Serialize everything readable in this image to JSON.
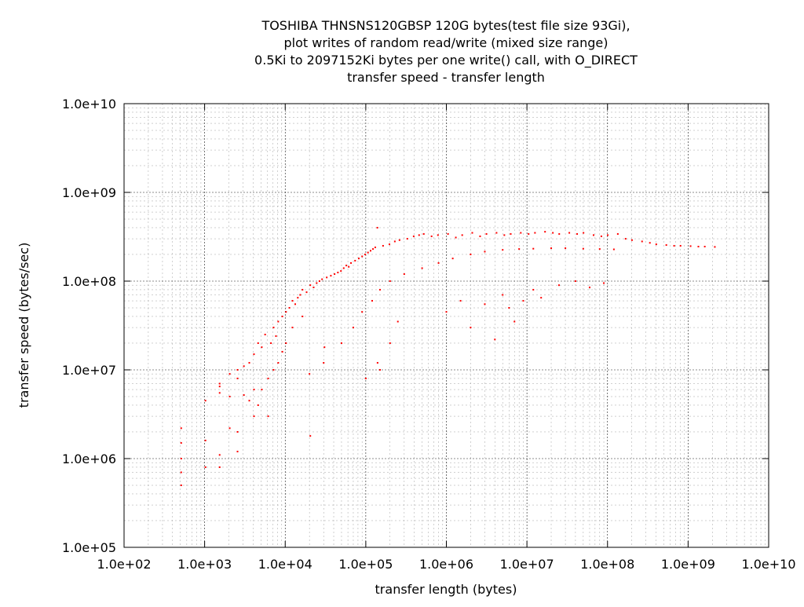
{
  "chart_data": {
    "type": "scatter",
    "title_lines": [
      "TOSHIBA THNSNS120GBSP 120G bytes(test file size 93Gi),",
      "plot writes of random read/write (mixed size range)",
      "0.5Ki to 2097152Ki bytes per one write() call, with O_DIRECT",
      "transfer speed - transfer length"
    ],
    "xlabel": "transfer length (bytes)",
    "ylabel": "transfer speed (bytes/sec)",
    "x_scale": "log",
    "y_scale": "log",
    "xlim": [
      100,
      10000000000
    ],
    "ylim": [
      100000,
      10000000000
    ],
    "grid": true,
    "x_tick_labels": [
      "1.0e+02",
      "1.0e+03",
      "1.0e+04",
      "1.0e+05",
      "1.0e+06",
      "1.0e+07",
      "1.0e+08",
      "1.0e+09",
      "1.0e+10"
    ],
    "y_tick_labels": [
      "1.0e+05",
      "1.0e+06",
      "1.0e+07",
      "1.0e+08",
      "1.0e+09",
      "1.0e+10"
    ],
    "x_ticks": [
      100,
      1000,
      10000,
      100000,
      1000000,
      10000000,
      100000000,
      1000000000,
      10000000000
    ],
    "y_ticks": [
      100000,
      1000000,
      10000000,
      100000000,
      1000000000,
      10000000000
    ],
    "series_color": "#ff0000",
    "series": [
      {
        "points": [
          [
            512,
            500000
          ],
          [
            512,
            700000
          ],
          [
            512,
            1000000
          ],
          [
            512,
            1500000
          ],
          [
            512,
            2200000
          ],
          [
            1024,
            1600000
          ],
          [
            1024,
            4500000
          ],
          [
            1024,
            800000
          ],
          [
            1536,
            800000
          ],
          [
            1536,
            1100000
          ],
          [
            1536,
            5500000
          ],
          [
            1536,
            6500000
          ],
          [
            1536,
            7000000
          ],
          [
            2048,
            2200000
          ],
          [
            2048,
            5000000
          ],
          [
            2048,
            9000000
          ],
          [
            2560,
            2000000
          ],
          [
            2560,
            1200000
          ],
          [
            2560,
            8000000
          ],
          [
            2560,
            10000000
          ],
          [
            3072,
            5200000
          ],
          [
            3072,
            11000000
          ],
          [
            3584,
            12000000
          ],
          [
            3584,
            4500000
          ],
          [
            4096,
            3000000
          ],
          [
            4096,
            6000000
          ],
          [
            4096,
            15000000
          ],
          [
            4608,
            4000000
          ],
          [
            4608,
            20000000
          ],
          [
            5120,
            6000000
          ],
          [
            5120,
            18000000
          ],
          [
            5632,
            25000000
          ],
          [
            6144,
            3000000
          ],
          [
            6144,
            8000000
          ],
          [
            6656,
            20000000
          ],
          [
            7168,
            10000000
          ],
          [
            7168,
            30000000
          ],
          [
            7680,
            24000000
          ],
          [
            8192,
            12000000
          ],
          [
            8192,
            35000000
          ],
          [
            9216,
            40000000
          ],
          [
            9216,
            16000000
          ],
          [
            10240,
            45000000
          ],
          [
            10240,
            20000000
          ],
          [
            11264,
            50000000
          ],
          [
            12288,
            30000000
          ],
          [
            12288,
            60000000
          ],
          [
            13312,
            55000000
          ],
          [
            14336,
            65000000
          ],
          [
            15360,
            70000000
          ],
          [
            16384,
            40000000
          ],
          [
            16384,
            80000000
          ],
          [
            18432,
            75000000
          ],
          [
            20480,
            90000000
          ],
          [
            20480,
            1800000
          ],
          [
            22528,
            85000000
          ],
          [
            24576,
            95000000
          ],
          [
            26624,
            100000000
          ],
          [
            28672,
            105000000
          ],
          [
            30720,
            18000000
          ],
          [
            32768,
            110000000
          ],
          [
            36864,
            115000000
          ],
          [
            40960,
            120000000
          ],
          [
            45056,
            125000000
          ],
          [
            49152,
            130000000
          ],
          [
            53248,
            140000000
          ],
          [
            57344,
            150000000
          ],
          [
            61440,
            145000000
          ],
          [
            65536,
            160000000
          ],
          [
            73728,
            170000000
          ],
          [
            81920,
            180000000
          ],
          [
            90112,
            190000000
          ],
          [
            98304,
            200000000
          ],
          [
            106496,
            210000000
          ],
          [
            114688,
            220000000
          ],
          [
            122880,
            230000000
          ],
          [
            131072,
            240000000
          ],
          [
            139264,
            400000000
          ],
          [
            163840,
            250000000
          ],
          [
            196608,
            260000000
          ],
          [
            229376,
            280000000
          ],
          [
            262144,
            290000000
          ],
          [
            327680,
            300000000
          ],
          [
            393216,
            320000000
          ],
          [
            458752,
            330000000
          ],
          [
            524288,
            340000000
          ],
          [
            655360,
            320000000
          ],
          [
            786432,
            330000000
          ],
          [
            1048576,
            340000000
          ],
          [
            1310720,
            310000000
          ],
          [
            1572864,
            330000000
          ],
          [
            2097152,
            350000000
          ],
          [
            2621440,
            320000000
          ],
          [
            3145728,
            340000000
          ],
          [
            4194304,
            350000000
          ],
          [
            5242880,
            330000000
          ],
          [
            6291456,
            340000000
          ],
          [
            8388608,
            350000000
          ],
          [
            10485760,
            340000000
          ],
          [
            12582912,
            350000000
          ],
          [
            16777216,
            360000000
          ],
          [
            20971520,
            350000000
          ],
          [
            25165824,
            340000000
          ],
          [
            33554432,
            350000000
          ],
          [
            41943040,
            340000000
          ],
          [
            50331648,
            350000000
          ],
          [
            67108864,
            330000000
          ],
          [
            83886080,
            320000000
          ],
          [
            100663296,
            330000000
          ],
          [
            134217728,
            340000000
          ],
          [
            167772160,
            300000000
          ],
          [
            201326592,
            290000000
          ],
          [
            268435456,
            280000000
          ],
          [
            335544320,
            270000000
          ],
          [
            402653184,
            260000000
          ],
          [
            536870912,
            255000000
          ],
          [
            671088640,
            250000000
          ],
          [
            805306368,
            250000000
          ],
          [
            1073741824,
            248000000
          ],
          [
            1342177280,
            245000000
          ],
          [
            1610612736,
            245000000
          ],
          [
            2147483648,
            243000000
          ],
          [
            20000,
            9000000
          ],
          [
            30000,
            12000000
          ],
          [
            50000,
            20000000
          ],
          [
            70000,
            30000000
          ],
          [
            90000,
            45000000
          ],
          [
            120000,
            60000000
          ],
          [
            150000,
            80000000
          ],
          [
            200000,
            100000000
          ],
          [
            300000,
            120000000
          ],
          [
            500000,
            140000000
          ],
          [
            800000,
            160000000
          ],
          [
            1200000,
            180000000
          ],
          [
            2000000,
            200000000
          ],
          [
            3000000,
            215000000
          ],
          [
            5000000,
            225000000
          ],
          [
            8000000,
            230000000
          ],
          [
            12000000,
            232000000
          ],
          [
            20000000,
            235000000
          ],
          [
            30000000,
            235000000
          ],
          [
            50000000,
            232000000
          ],
          [
            80000000,
            230000000
          ],
          [
            120000000,
            228000000
          ],
          [
            1000000,
            45000000
          ],
          [
            1500000,
            60000000
          ],
          [
            2000000,
            30000000
          ],
          [
            3000000,
            55000000
          ],
          [
            4000000,
            22000000
          ],
          [
            5000000,
            70000000
          ],
          [
            6000000,
            50000000
          ],
          [
            7000000,
            35000000
          ],
          [
            9000000,
            60000000
          ],
          [
            12000000,
            80000000
          ],
          [
            15000000,
            65000000
          ],
          [
            25000000,
            90000000
          ],
          [
            40000000,
            100000000
          ],
          [
            60000000,
            85000000
          ],
          [
            90000000,
            95000000
          ],
          [
            150000,
            10000000
          ],
          [
            140000,
            12000000
          ],
          [
            100000,
            8000000
          ],
          [
            200000,
            20000000
          ],
          [
            250000,
            35000000
          ]
        ]
      }
    ]
  }
}
